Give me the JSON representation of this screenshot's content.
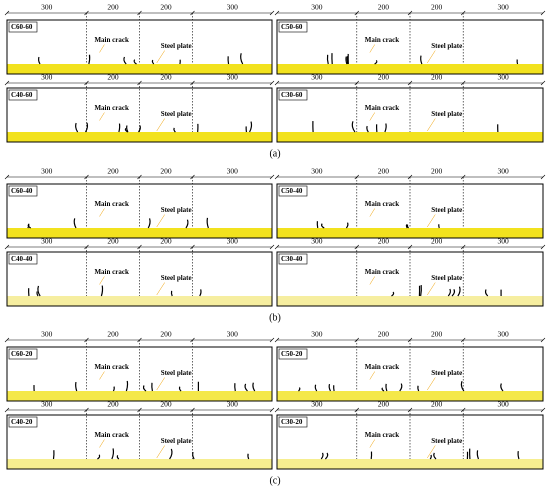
{
  "figure": {
    "groups": [
      {
        "caption": "(a)",
        "rows": [
          {
            "panels": [
              {
                "label": "C60-60",
                "dimensions": [
                  "300",
                  "200",
                  "200",
                  "300"
                ],
                "main_crack": "Main crack",
                "steel_plate": "Steel plate"
              },
              {
                "label": "C50-60",
                "dimensions": [
                  "300",
                  "200",
                  "200",
                  "300"
                ],
                "main_crack": "Main crack",
                "steel_plate": "Steel plate"
              }
            ]
          },
          {
            "panels": [
              {
                "label": "C40-60",
                "dimensions": [
                  "300",
                  "200",
                  "200",
                  "300"
                ],
                "main_crack": "Main crack",
                "steel_plate": "Steel plate"
              },
              {
                "label": "C30-60",
                "dimensions": [
                  "300",
                  "200",
                  "200",
                  "300"
                ],
                "main_crack": "Main crack",
                "steel_plate": "Steel plate"
              }
            ]
          }
        ]
      },
      {
        "caption": "(b)",
        "rows": [
          {
            "panels": [
              {
                "label": "C60-40",
                "dimensions": [
                  "300",
                  "200",
                  "200",
                  "300"
                ],
                "main_crack": "Main crack",
                "steel_plate": "Steel plate"
              },
              {
                "label": "C50-40",
                "dimensions": [
                  "300",
                  "200",
                  "200",
                  "300"
                ],
                "main_crack": "Main crack",
                "steel_plate": "Steel plate"
              }
            ]
          },
          {
            "panels": [
              {
                "label": "C40-40",
                "dimensions": [
                  "300",
                  "200",
                  "200",
                  "300"
                ],
                "main_crack": "Main crack",
                "steel_plate": "Steel plate"
              },
              {
                "label": "C30-40",
                "dimensions": [
                  "300",
                  "200",
                  "200",
                  "300"
                ],
                "main_crack": "Main crack",
                "steel_plate": "Steel plate"
              }
            ]
          }
        ]
      },
      {
        "caption": "(c)",
        "rows": [
          {
            "panels": [
              {
                "label": "C60-20",
                "dimensions": [
                  "300",
                  "200",
                  "200",
                  "300"
                ],
                "main_crack": "Main crack",
                "steel_plate": "Steel plate"
              },
              {
                "label": "C50-20",
                "dimensions": [
                  "300",
                  "200",
                  "200",
                  "300"
                ],
                "main_crack": "Main crack",
                "steel_plate": "Steel plate"
              }
            ]
          },
          {
            "panels": [
              {
                "label": "C40-20",
                "dimensions": [
                  "300",
                  "200",
                  "200",
                  "300"
                ],
                "main_crack": "Main crack",
                "steel_plate": "Steel plate"
              },
              {
                "label": "C30-20",
                "dimensions": [
                  "300",
                  "200",
                  "200",
                  "300"
                ],
                "main_crack": "Main crack",
                "steel_plate": "Steel plate"
              }
            ]
          }
        ]
      }
    ]
  }
}
